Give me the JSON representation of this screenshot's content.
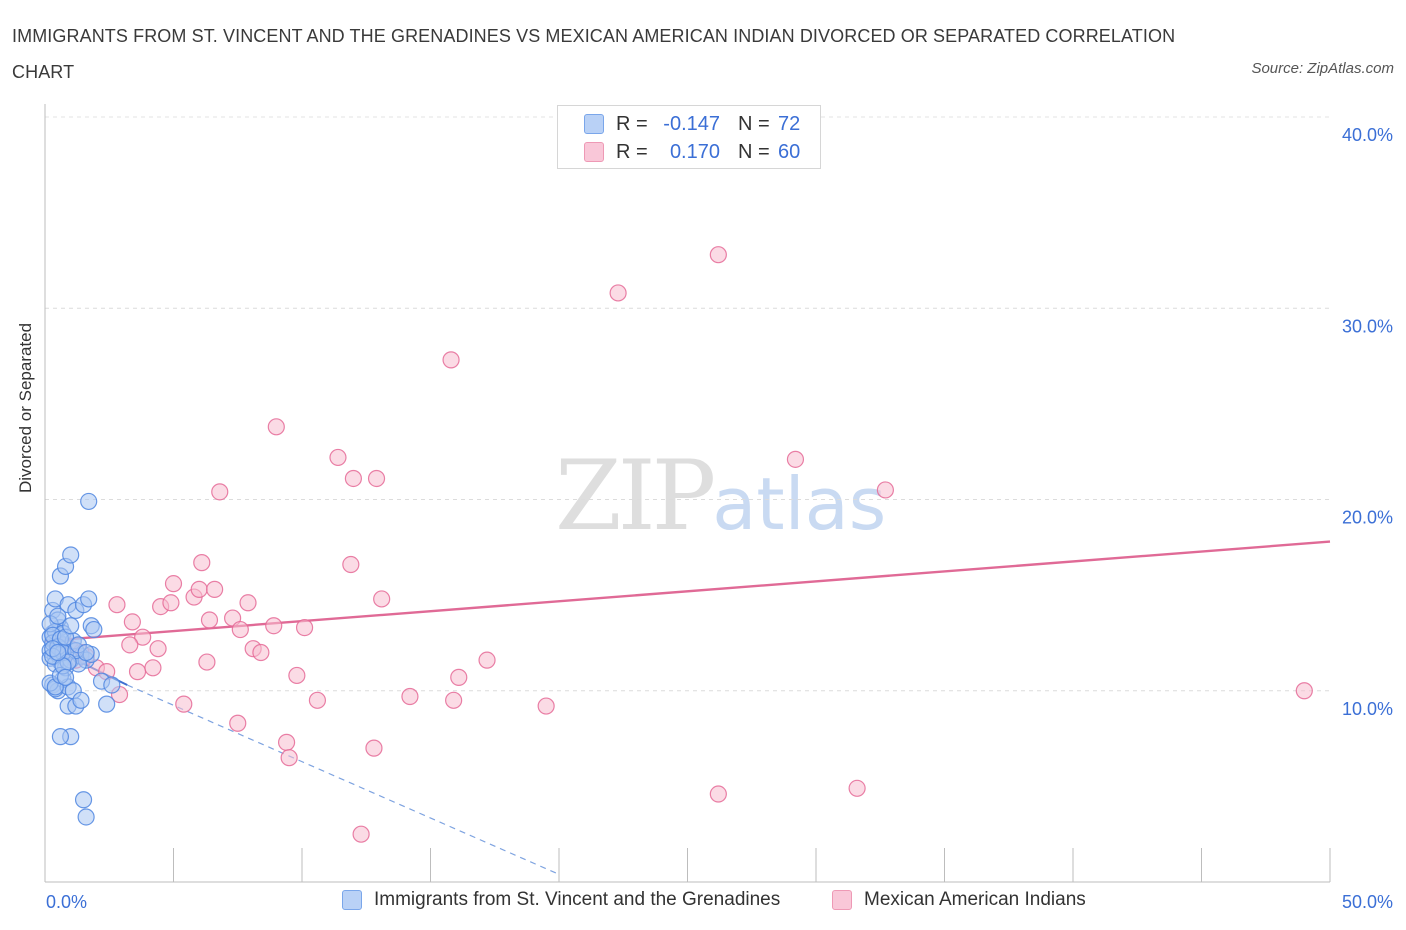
{
  "header": {
    "title": "IMMIGRANTS FROM ST. VINCENT AND THE GRENADINES VS MEXICAN AMERICAN INDIAN DIVORCED OR SEPARATED CORRELATION CHART",
    "source": "Source: ZipAtlas.com"
  },
  "watermark": {
    "zip": "ZIP",
    "atlas": "atlas"
  },
  "legend": {
    "rows": [
      {
        "r_label": "R =",
        "r_value": "-0.147",
        "n_label": "N =",
        "n_value": "72",
        "color": "#7aa6ea",
        "fill": "#b9d1f6"
      },
      {
        "r_label": "R =",
        "r_value": "0.170",
        "n_label": "N =",
        "n_value": "60",
        "color": "#ee99b5",
        "fill": "#f9c7d8"
      }
    ]
  },
  "chart_data": {
    "type": "scatter",
    "title": "IMMIGRANTS FROM ST. VINCENT AND THE GRENADINES VS MEXICAN AMERICAN INDIAN DIVORCED OR SEPARATED CORRELATION CHART",
    "xlabel": "",
    "ylabel": "Divorced or Separated",
    "xlim": [
      0,
      50
    ],
    "ylim": [
      0,
      40
    ],
    "x_tick_labels": [
      "0.0%",
      "50.0%"
    ],
    "y_ticks": [
      10,
      20,
      30,
      40
    ],
    "y_tick_labels": [
      "10.0%",
      "20.0%",
      "30.0%",
      "40.0%"
    ],
    "grid": true,
    "legend_position": "top-center",
    "series": [
      {
        "name": "Immigrants from St. Vincent and the Grenadines",
        "color": "#4f86e0",
        "fill": "#a9c6f2",
        "trend": {
          "x0": 0,
          "y0": 12.4,
          "x1": 3.2,
          "y1": 10.3,
          "x_dash_end": 20.0,
          "y_dash_end": 0.4
        },
        "points": [
          [
            0.3,
            13.0
          ],
          [
            0.5,
            12.6
          ],
          [
            0.2,
            12.1
          ],
          [
            0.6,
            13.3
          ],
          [
            0.4,
            11.8
          ],
          [
            0.7,
            12.4
          ],
          [
            0.3,
            14.2
          ],
          [
            0.5,
            13.7
          ],
          [
            0.2,
            12.8
          ],
          [
            0.8,
            12.0
          ],
          [
            0.4,
            13.1
          ],
          [
            0.6,
            11.5
          ],
          [
            0.3,
            10.3
          ],
          [
            0.5,
            10.0
          ],
          [
            0.7,
            10.6
          ],
          [
            0.4,
            10.1
          ],
          [
            0.9,
            10.2
          ],
          [
            0.2,
            11.7
          ],
          [
            0.6,
            12.2
          ],
          [
            0.8,
            11.2
          ],
          [
            1.0,
            11.6
          ],
          [
            0.3,
            12.5
          ],
          [
            0.5,
            11.9
          ],
          [
            0.7,
            13.0
          ],
          [
            1.1,
            12.6
          ],
          [
            0.4,
            14.8
          ],
          [
            0.9,
            14.5
          ],
          [
            0.6,
            16.0
          ],
          [
            0.8,
            16.5
          ],
          [
            1.0,
            17.1
          ],
          [
            1.2,
            14.2
          ],
          [
            1.5,
            14.5
          ],
          [
            1.7,
            14.8
          ],
          [
            1.8,
            13.4
          ],
          [
            1.9,
            13.2
          ],
          [
            1.4,
            11.8
          ],
          [
            1.6,
            11.6
          ],
          [
            1.3,
            11.4
          ],
          [
            1.8,
            11.9
          ],
          [
            2.2,
            10.5
          ],
          [
            2.6,
            10.3
          ],
          [
            1.1,
            10.0
          ],
          [
            0.9,
            9.2
          ],
          [
            1.2,
            9.2
          ],
          [
            1.4,
            9.5
          ],
          [
            2.4,
            9.3
          ],
          [
            1.0,
            7.6
          ],
          [
            0.6,
            7.6
          ],
          [
            1.5,
            4.3
          ],
          [
            1.6,
            3.4
          ],
          [
            1.7,
            19.9
          ],
          [
            0.2,
            13.5
          ],
          [
            0.3,
            12.9
          ],
          [
            0.5,
            12.3
          ],
          [
            0.4,
            11.4
          ],
          [
            0.6,
            12.7
          ],
          [
            0.7,
            12.0
          ],
          [
            0.3,
            11.8
          ],
          [
            0.8,
            12.8
          ],
          [
            1.0,
            13.4
          ],
          [
            1.2,
            12.1
          ],
          [
            0.9,
            11.5
          ],
          [
            0.2,
            10.4
          ],
          [
            0.4,
            10.2
          ],
          [
            0.6,
            10.8
          ],
          [
            0.5,
            13.9
          ],
          [
            0.3,
            12.2
          ],
          [
            0.7,
            11.3
          ],
          [
            1.3,
            12.4
          ],
          [
            1.6,
            12.0
          ],
          [
            0.8,
            10.7
          ],
          [
            0.5,
            12.0
          ]
        ]
      },
      {
        "name": "Mexican American Indians",
        "color": "#e56a97",
        "fill": "#f7bdd0",
        "trend": {
          "x0": 0,
          "y0": 12.6,
          "x1": 50,
          "y1": 17.8
        },
        "points": [
          [
            0.5,
            12.4
          ],
          [
            0.8,
            12.0
          ],
          [
            1.2,
            11.6
          ],
          [
            1.6,
            11.8
          ],
          [
            2.0,
            11.2
          ],
          [
            2.4,
            11.0
          ],
          [
            1.0,
            12.2
          ],
          [
            1.4,
            12.0
          ],
          [
            2.8,
            14.5
          ],
          [
            3.4,
            13.6
          ],
          [
            3.8,
            12.8
          ],
          [
            3.6,
            11.0
          ],
          [
            4.2,
            11.2
          ],
          [
            4.4,
            12.2
          ],
          [
            4.5,
            14.4
          ],
          [
            4.9,
            14.6
          ],
          [
            5.0,
            15.6
          ],
          [
            5.4,
            9.3
          ],
          [
            5.8,
            14.9
          ],
          [
            6.0,
            15.3
          ],
          [
            6.1,
            16.7
          ],
          [
            6.4,
            13.7
          ],
          [
            6.6,
            15.3
          ],
          [
            6.8,
            20.4
          ],
          [
            7.3,
            13.8
          ],
          [
            7.5,
            8.3
          ],
          [
            7.6,
            13.2
          ],
          [
            7.9,
            14.6
          ],
          [
            8.1,
            12.2
          ],
          [
            8.4,
            12.0
          ],
          [
            8.9,
            13.4
          ],
          [
            9.0,
            23.8
          ],
          [
            9.4,
            7.3
          ],
          [
            9.5,
            6.5
          ],
          [
            9.8,
            10.8
          ],
          [
            10.1,
            13.3
          ],
          [
            10.6,
            9.5
          ],
          [
            11.4,
            22.2
          ],
          [
            11.9,
            16.6
          ],
          [
            12.0,
            21.1
          ],
          [
            12.3,
            2.5
          ],
          [
            12.8,
            7.0
          ],
          [
            12.9,
            21.1
          ],
          [
            13.1,
            14.8
          ],
          [
            14.2,
            9.7
          ],
          [
            15.8,
            27.3
          ],
          [
            15.9,
            9.5
          ],
          [
            16.1,
            10.7
          ],
          [
            17.2,
            11.6
          ],
          [
            19.5,
            9.2
          ],
          [
            22.3,
            30.8
          ],
          [
            26.2,
            32.8
          ],
          [
            26.2,
            4.6
          ],
          [
            29.2,
            22.1
          ],
          [
            31.6,
            4.9
          ],
          [
            32.7,
            20.5
          ],
          [
            49.0,
            10.0
          ],
          [
            2.9,
            9.8
          ],
          [
            3.3,
            12.4
          ],
          [
            6.3,
            11.5
          ]
        ]
      }
    ]
  }
}
